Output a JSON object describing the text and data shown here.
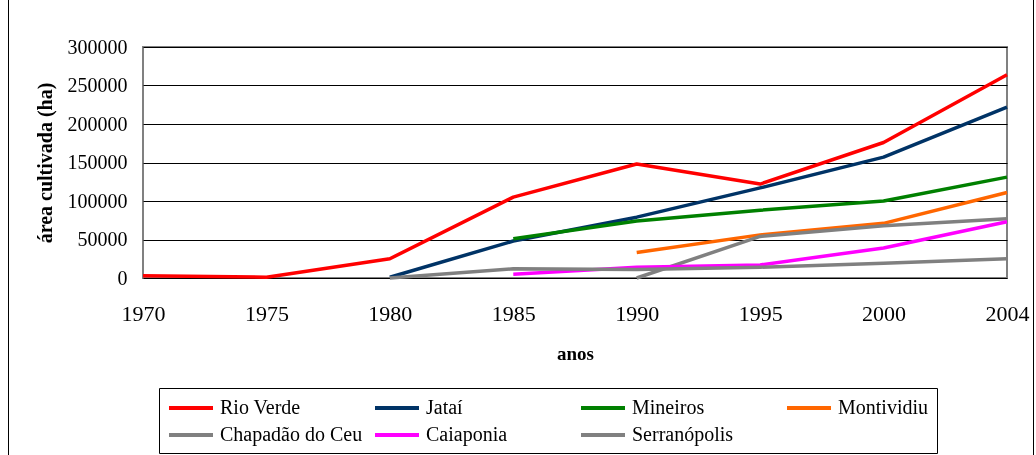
{
  "chart_data": {
    "type": "line",
    "xlabel": "anos",
    "ylabel": "área cultivada (ha)",
    "categories": [
      "1970",
      "1975",
      "1980",
      "1985",
      "1990",
      "1995",
      "2000",
      "2004"
    ],
    "ylim": [
      0,
      300000
    ],
    "yticks": [
      0,
      50000,
      100000,
      150000,
      200000,
      250000,
      300000
    ],
    "grid": "y",
    "legend": "bottom",
    "series": [
      {
        "name": "Rio Verde",
        "color": "#ff0000",
        "values": [
          3000,
          1000,
          25000,
          105000,
          148000,
          122000,
          176000,
          264000
        ]
      },
      {
        "name": "Jataí",
        "color": "#003366",
        "values": [
          null,
          null,
          1000,
          48000,
          79000,
          117000,
          157000,
          222000
        ]
      },
      {
        "name": "Mineiros",
        "color": "#008000",
        "values": [
          null,
          null,
          null,
          51000,
          74000,
          88000,
          100000,
          131000
        ]
      },
      {
        "name": "Montividiu",
        "color": "#ff6600",
        "values": [
          null,
          null,
          null,
          null,
          33000,
          56000,
          71000,
          111000
        ]
      },
      {
        "name": "Chapadão do Ceu",
        "color": "#808080",
        "values": [
          null,
          null,
          null,
          null,
          0,
          54000,
          68000,
          77000
        ]
      },
      {
        "name": "Caiaponia",
        "color": "#ff00ff",
        "values": [
          null,
          null,
          null,
          5000,
          14000,
          17000,
          39000,
          73000
        ]
      },
      {
        "name": "Serranópolis",
        "color": "#808080",
        "values": [
          null,
          null,
          0,
          12000,
          11000,
          14000,
          19000,
          25000
        ]
      }
    ]
  }
}
